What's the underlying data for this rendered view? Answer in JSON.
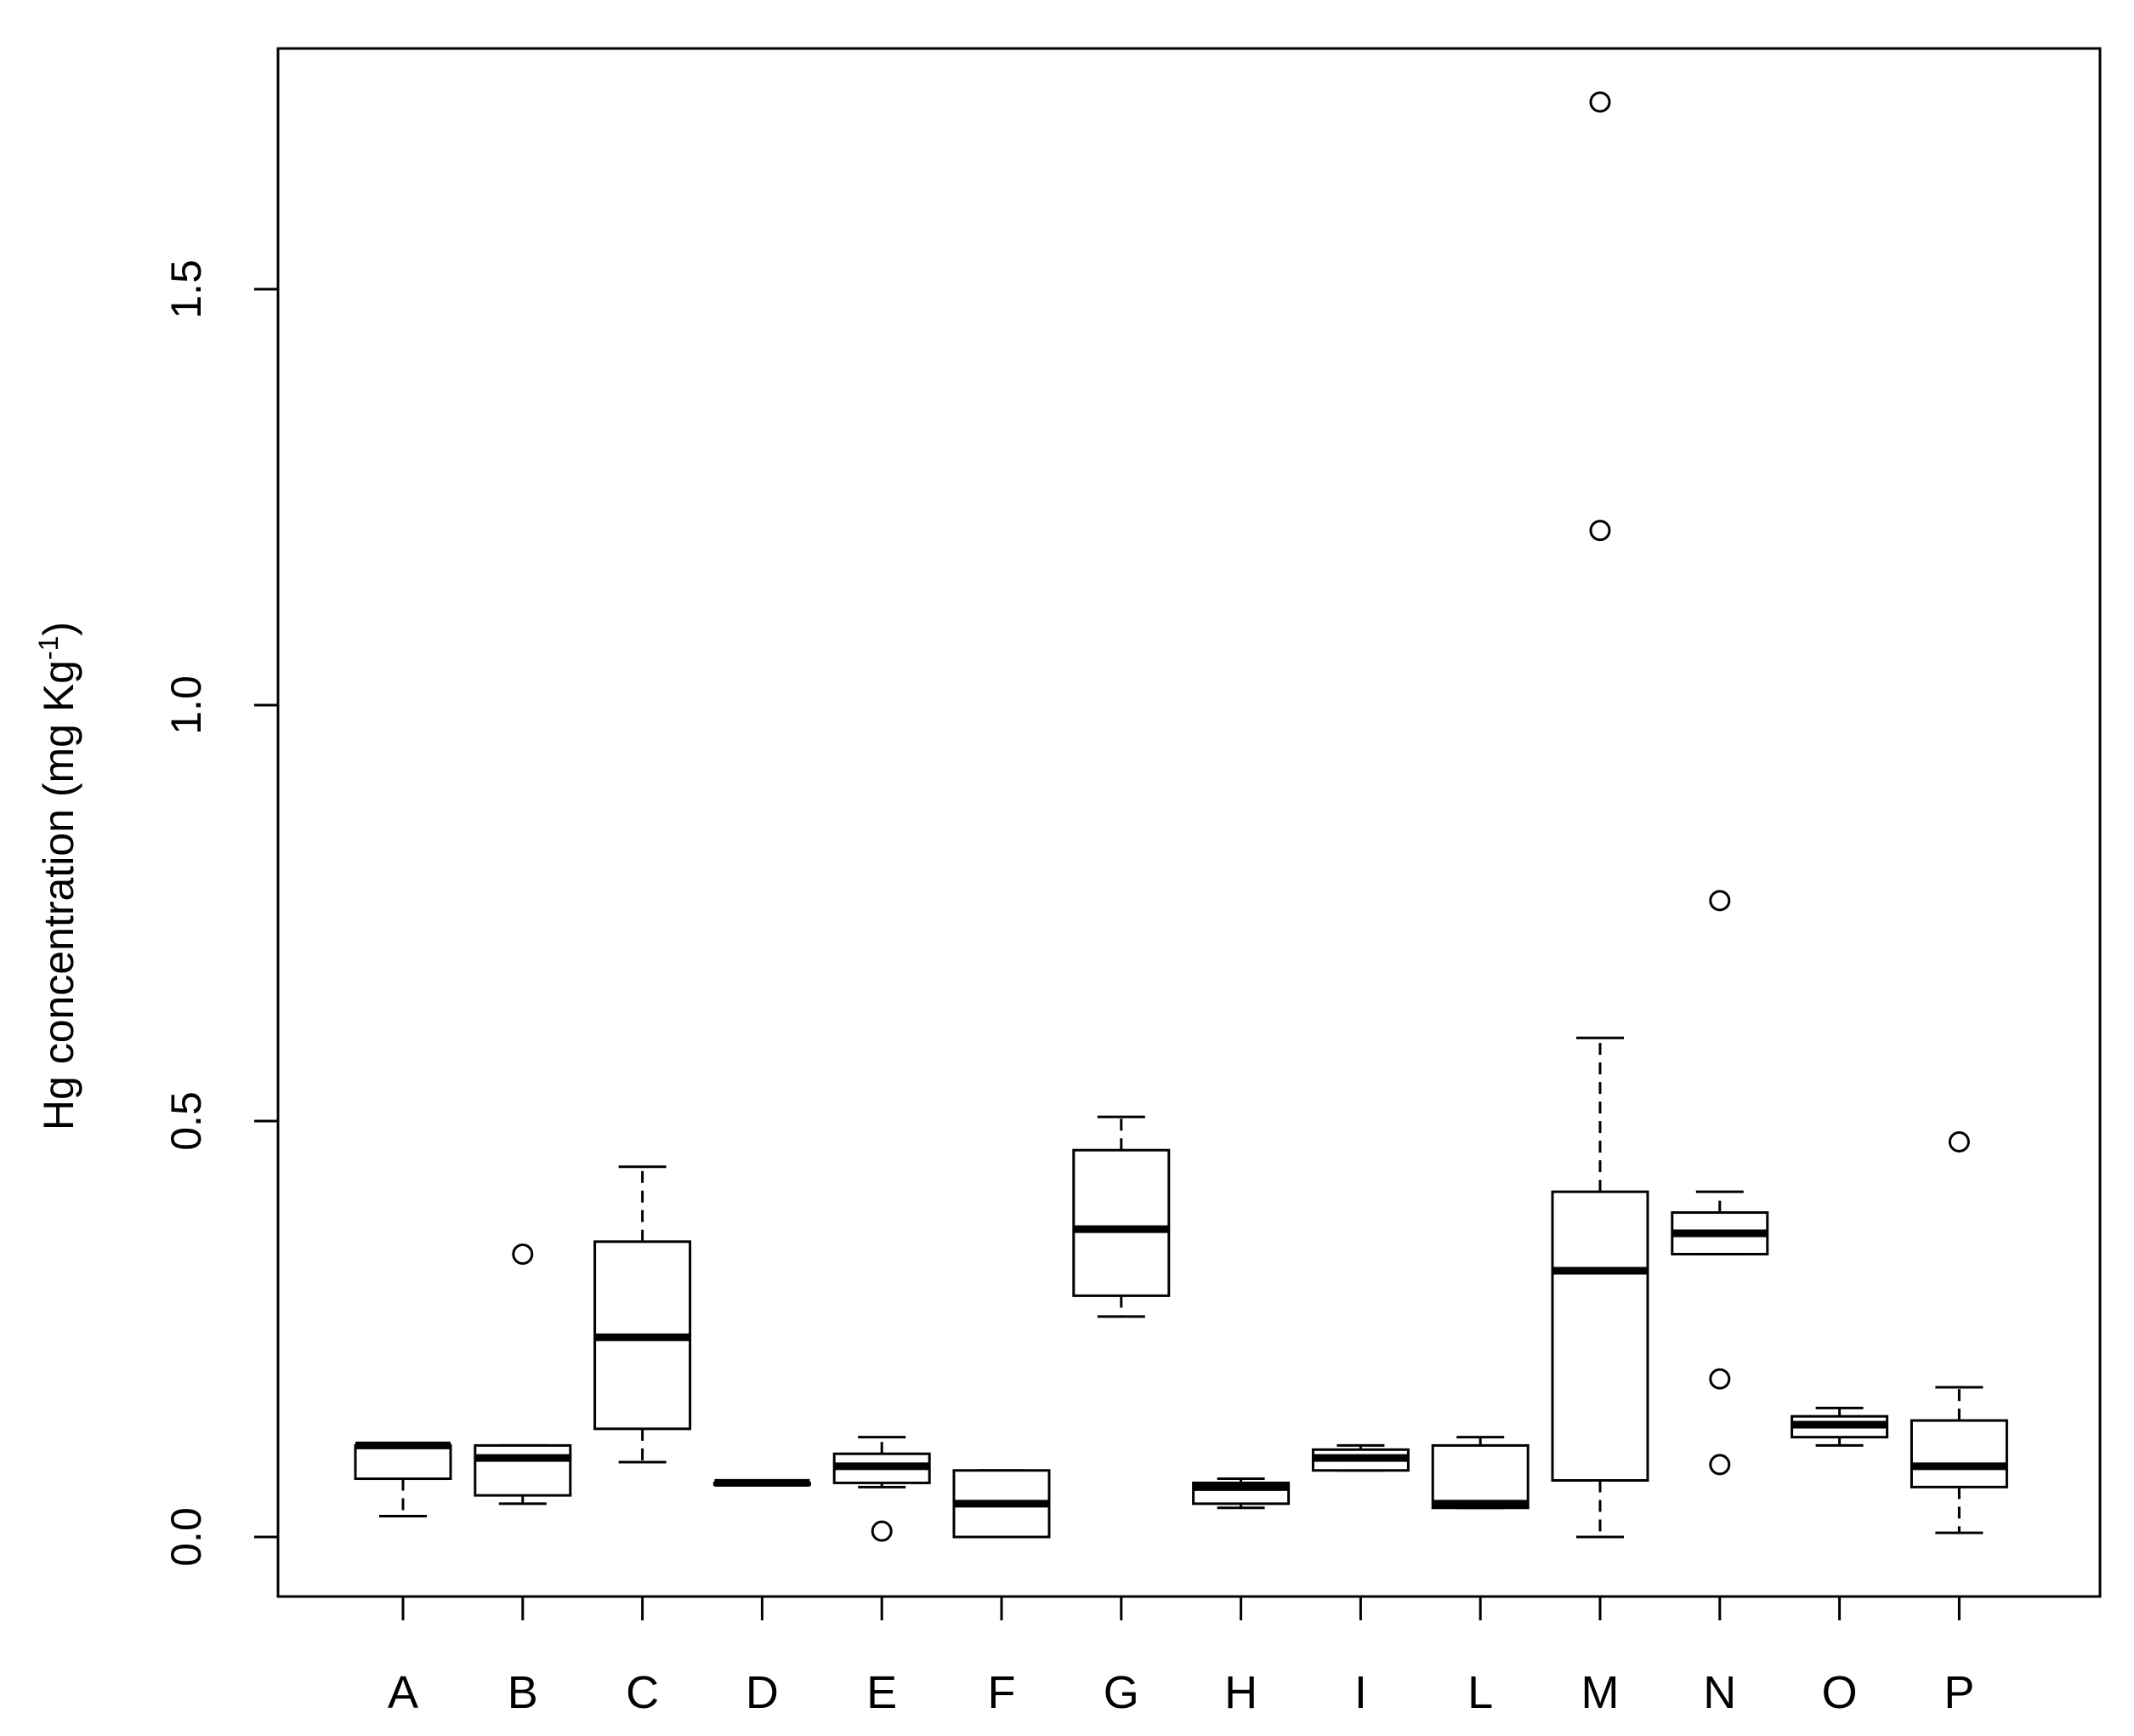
{
  "chart_data": {
    "type": "boxplot",
    "title": "",
    "xlabel": "",
    "ylabel_main": "Hg concentration (mg Kg",
    "ylabel_sup": "-1",
    "ylabel_close": ")",
    "ylim": [
      -0.07,
      1.8
    ],
    "yticks": [
      0.0,
      0.5,
      1.0,
      1.5
    ],
    "ytick_labels": [
      "0.0",
      "0.5",
      "1.0",
      "1.5"
    ],
    "categories": [
      "A",
      "B",
      "C",
      "D",
      "E",
      "F",
      "G",
      "H",
      "I",
      "L",
      "M",
      "N",
      "O",
      "P"
    ],
    "boxes": [
      {
        "label": "A",
        "whisker_low": 0.025,
        "q1": 0.07,
        "median": 0.11,
        "q3": 0.11,
        "whisker_high": 0.11,
        "outliers": []
      },
      {
        "label": "B",
        "whisker_low": 0.04,
        "q1": 0.05,
        "median": 0.095,
        "q3": 0.11,
        "whisker_high": 0.11,
        "outliers": [
          0.34
        ]
      },
      {
        "label": "C",
        "whisker_low": 0.09,
        "q1": 0.13,
        "median": 0.24,
        "q3": 0.355,
        "whisker_high": 0.445,
        "outliers": []
      },
      {
        "label": "D",
        "whisker_low": 0.065,
        "q1": 0.065,
        "median": 0.065,
        "q3": 0.065,
        "whisker_high": 0.065,
        "outliers": []
      },
      {
        "label": "E",
        "whisker_low": 0.06,
        "q1": 0.065,
        "median": 0.085,
        "q3": 0.1,
        "whisker_high": 0.12,
        "outliers": [
          0.007
        ]
      },
      {
        "label": "F",
        "whisker_low": 0.0,
        "q1": 0.0,
        "median": 0.04,
        "q3": 0.08,
        "whisker_high": 0.08,
        "outliers": []
      },
      {
        "label": "G",
        "whisker_low": 0.265,
        "q1": 0.29,
        "median": 0.37,
        "q3": 0.465,
        "whisker_high": 0.505,
        "outliers": []
      },
      {
        "label": "H",
        "whisker_low": 0.035,
        "q1": 0.04,
        "median": 0.06,
        "q3": 0.065,
        "whisker_high": 0.07,
        "outliers": []
      },
      {
        "label": "I",
        "whisker_low": 0.08,
        "q1": 0.08,
        "median": 0.095,
        "q3": 0.105,
        "whisker_high": 0.11,
        "outliers": []
      },
      {
        "label": "L",
        "whisker_low": 0.035,
        "q1": 0.035,
        "median": 0.04,
        "q3": 0.11,
        "whisker_high": 0.12,
        "outliers": []
      },
      {
        "label": "M",
        "whisker_low": 0.0,
        "q1": 0.068,
        "median": 0.32,
        "q3": 0.415,
        "whisker_high": 0.6,
        "outliers": [
          1.21,
          1.725
        ]
      },
      {
        "label": "N",
        "whisker_low": 0.34,
        "q1": 0.34,
        "median": 0.365,
        "q3": 0.39,
        "whisker_high": 0.415,
        "outliers": [
          0.765,
          0.19,
          0.087
        ]
      },
      {
        "label": "O",
        "whisker_low": 0.11,
        "q1": 0.12,
        "median": 0.135,
        "q3": 0.145,
        "whisker_high": 0.155,
        "outliers": []
      },
      {
        "label": "P",
        "whisker_low": 0.005,
        "q1": 0.06,
        "median": 0.085,
        "q3": 0.14,
        "whisker_high": 0.18,
        "outliers": [
          0.475
        ]
      }
    ]
  }
}
